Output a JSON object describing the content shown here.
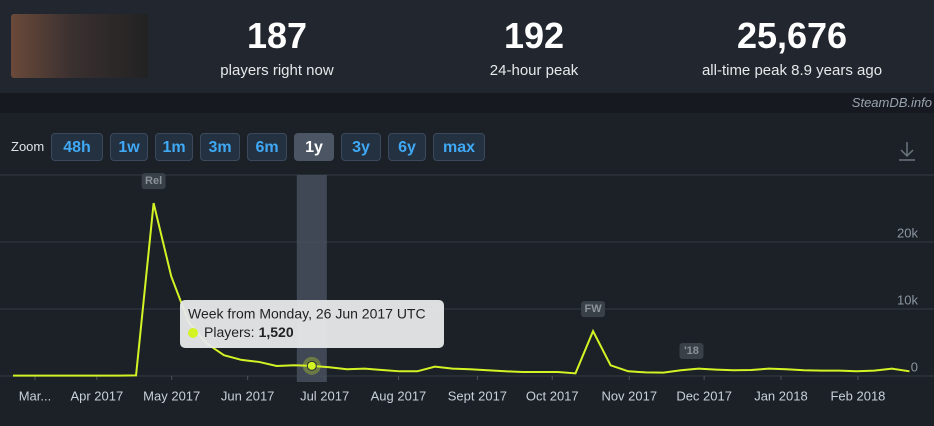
{
  "header": {
    "stats": [
      {
        "value": "187",
        "label": "players right now"
      },
      {
        "value": "192",
        "label": "24-hour peak"
      },
      {
        "value": "25,676",
        "label": "all-time peak 8.9 years ago"
      }
    ],
    "brand": "SteamDB.info"
  },
  "zoom": {
    "label": "Zoom",
    "buttons": [
      "48h",
      "1w",
      "1m",
      "3m",
      "6m",
      "1y",
      "3y",
      "6y",
      "max"
    ],
    "active": 5
  },
  "chart_data": {
    "type": "line",
    "x": [
      0,
      1,
      2,
      3,
      4,
      5,
      6,
      7,
      8,
      9,
      10,
      11,
      12,
      13,
      14,
      15,
      16,
      17,
      18,
      19,
      20,
      21,
      22,
      23,
      24,
      25,
      26,
      27,
      28,
      29,
      30,
      31,
      32,
      33,
      34,
      35,
      36,
      37,
      38,
      39,
      40,
      41,
      42,
      43,
      44,
      45,
      46,
      47,
      48,
      49,
      50,
      51
    ],
    "series": [
      {
        "name": "Players:",
        "color": "#d4f324",
        "values": [
          60,
          60,
          60,
          60,
          60,
          60,
          60,
          100,
          25800,
          14900,
          8000,
          4900,
          3100,
          2400,
          2100,
          1500,
          1600,
          1520,
          1300,
          1000,
          1100,
          900,
          700,
          700,
          1400,
          1100,
          1000,
          850,
          700,
          600,
          600,
          600,
          400,
          6700,
          1600,
          700,
          550,
          500,
          850,
          1100,
          950,
          850,
          900,
          1100,
          1000,
          850,
          800,
          800,
          700,
          800,
          1100,
          700
        ],
        "value_labels": [
          null,
          null,
          null,
          null,
          null,
          null,
          null,
          null,
          null,
          null,
          null,
          null,
          null,
          null,
          null,
          null,
          null,
          "1,520",
          null,
          null,
          null,
          null,
          null,
          null,
          null,
          null,
          null,
          null,
          null,
          null,
          null,
          null,
          null,
          null,
          null,
          null,
          null,
          null,
          null,
          null,
          null,
          null,
          null,
          null,
          null,
          null,
          null,
          null,
          null,
          null,
          null,
          null
        ]
      }
    ],
    "xlim": [
      0,
      51.6
    ],
    "xticks": [
      {
        "value": 1.25,
        "label": "Mar..."
      },
      {
        "value": 4.77,
        "label": "Apr 2017"
      },
      {
        "value": 9.03,
        "label": "May 2017"
      },
      {
        "value": 13.35,
        "label": "Jun 2017"
      },
      {
        "value": 17.73,
        "label": "Jul 2017"
      },
      {
        "value": 21.93,
        "label": "Aug 2017"
      },
      {
        "value": 26.42,
        "label": "Sept 2017"
      },
      {
        "value": 30.68,
        "label": "Oct 2017"
      },
      {
        "value": 35.06,
        "label": "Nov 2017"
      },
      {
        "value": 39.32,
        "label": "Dec 2017"
      },
      {
        "value": 43.69,
        "label": "Jan 2018"
      },
      {
        "value": 48.07,
        "label": "Feb 2018"
      }
    ],
    "ylim": [
      0,
      30000
    ],
    "yticks": [
      0,
      {
        "value": 10000,
        "label": "10k"
      },
      {
        "value": 20000,
        "label": "20k"
      }
    ],
    "grid": true,
    "annotations": [
      {
        "x": 8,
        "text": "Rel"
      },
      {
        "x": 33,
        "text": "FW"
      },
      {
        "x": 38.6,
        "text": "'18"
      }
    ],
    "tooltip": {
      "index": 17,
      "title": "Week from Monday, 26 Jun 2017 UTC"
    }
  }
}
